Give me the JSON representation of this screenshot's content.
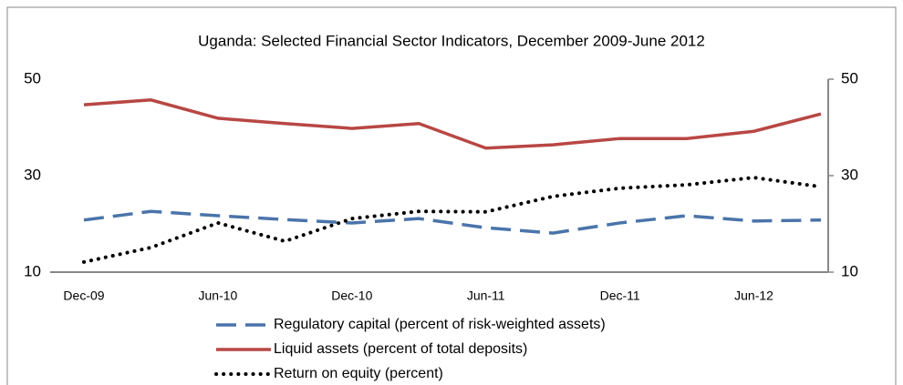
{
  "chart_data": {
    "type": "line",
    "title": "Uganda: Selected Financial Sector Indicators, December 2009-June 2012",
    "categories": [
      "Dec-09",
      null,
      "Jun-10",
      null,
      "Dec-10",
      null,
      "Jun-11",
      null,
      "Dec-11",
      null,
      "Jun-12",
      null
    ],
    "series": [
      {
        "name": "Regulatory capital (percent of risk-weighted assets)",
        "color": "#4a74aa",
        "dash": "dashed",
        "values": [
          20.8,
          22.6,
          21.7,
          20.9,
          20.2,
          21.1,
          19.2,
          18.1,
          20.2,
          21.7,
          20.6,
          20.8
        ]
      },
      {
        "name": "Liquid assets (percent of total deposits)",
        "color": "#b84744",
        "dash": "solid",
        "values": [
          44.7,
          45.7,
          41.9,
          40.8,
          39.8,
          40.8,
          35.7,
          36.4,
          37.7,
          37.7,
          39.2,
          42.8
        ]
      },
      {
        "name": "Return on equity (percent)",
        "color": "#000000",
        "dash": "dotted",
        "values": [
          12.1,
          15.1,
          20.2,
          16.4,
          21.1,
          22.6,
          22.5,
          25.7,
          27.4,
          28.1,
          29.6,
          27.7
        ]
      }
    ],
    "ylim": [
      10,
      50
    ],
    "yticks": [
      10,
      30,
      50
    ],
    "y2lim": [
      10,
      50
    ],
    "y2ticks": [
      10,
      30,
      50
    ]
  }
}
